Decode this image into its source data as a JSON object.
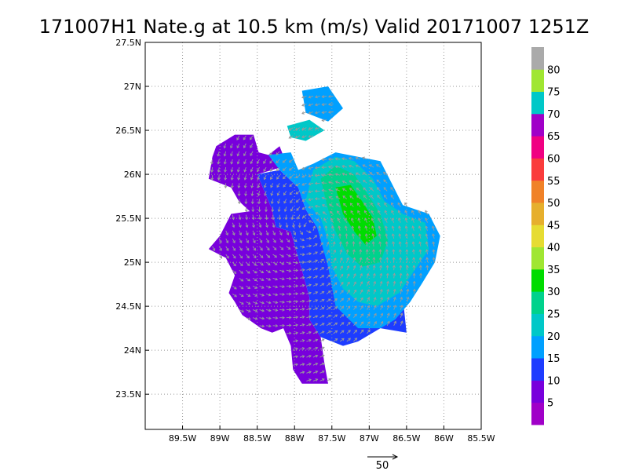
{
  "chart_data": {
    "type": "heatmap",
    "title": "171007H1 Nate.g at 10.5 km (m/s) Valid 20171007 1251Z",
    "xlim": [
      -90.0,
      -85.5
    ],
    "ylim": [
      23.1,
      27.5
    ],
    "x_ticks": [
      {
        "value": -89.5,
        "label": "89.5W"
      },
      {
        "value": -89.0,
        "label": "89W"
      },
      {
        "value": -88.5,
        "label": "88.5W"
      },
      {
        "value": -88.0,
        "label": "88W"
      },
      {
        "value": -87.5,
        "label": "87.5W"
      },
      {
        "value": -87.0,
        "label": "87W"
      },
      {
        "value": -86.5,
        "label": "86.5W"
      },
      {
        "value": -86.0,
        "label": "86W"
      },
      {
        "value": -85.5,
        "label": "85.5W"
      }
    ],
    "y_ticks": [
      {
        "value": 23.5,
        "label": "23.5N"
      },
      {
        "value": 24.0,
        "label": "24N"
      },
      {
        "value": 24.5,
        "label": "24.5N"
      },
      {
        "value": 25.0,
        "label": "25N"
      },
      {
        "value": 25.5,
        "label": "25.5N"
      },
      {
        "value": 26.0,
        "label": "26N"
      },
      {
        "value": 26.5,
        "label": "26.5N"
      },
      {
        "value": 27.0,
        "label": "27N"
      },
      {
        "value": 27.5,
        "label": "27.5N"
      }
    ],
    "grid": true,
    "colorbar": {
      "levels": [
        0,
        5,
        10,
        15,
        20,
        25,
        30,
        35,
        40,
        45,
        50,
        55,
        60,
        65,
        70,
        75,
        80,
        85
      ],
      "labels": [
        "5",
        "10",
        "15",
        "20",
        "25",
        "30",
        "35",
        "40",
        "45",
        "50",
        "55",
        "60",
        "65",
        "70",
        "75",
        "80"
      ],
      "colors": [
        "#a000c8",
        "#7800dc",
        "#1e3cff",
        "#00a0ff",
        "#00c8c8",
        "#00d28c",
        "#00dc00",
        "#a0e632",
        "#e6dc32",
        "#e6af2d",
        "#f08228",
        "#fa3c3c",
        "#f00082",
        "#a000c8",
        "#00c8c8",
        "#a0e632",
        "#aaaaaa"
      ]
    },
    "regions": [
      {
        "level": 5,
        "polygon": [
          [
            -89.05,
            26.32
          ],
          [
            -88.8,
            26.45
          ],
          [
            -88.55,
            26.45
          ],
          [
            -88.48,
            26.25
          ],
          [
            -88.35,
            26.22
          ],
          [
            -88.2,
            26.32
          ],
          [
            -88.1,
            26.1
          ],
          [
            -88.5,
            26.0
          ],
          [
            -88.4,
            25.8
          ],
          [
            -88.3,
            25.6
          ],
          [
            -88.25,
            25.4
          ],
          [
            -88.05,
            25.35
          ],
          [
            -87.95,
            25.05
          ],
          [
            -87.88,
            24.85
          ],
          [
            -87.8,
            24.6
          ],
          [
            -87.8,
            24.35
          ],
          [
            -87.65,
            24.15
          ],
          [
            -87.6,
            23.85
          ],
          [
            -87.55,
            23.62
          ],
          [
            -87.9,
            23.62
          ],
          [
            -88.02,
            23.78
          ],
          [
            -88.05,
            24.05
          ],
          [
            -88.15,
            24.25
          ],
          [
            -88.3,
            24.2
          ],
          [
            -88.45,
            24.25
          ],
          [
            -88.7,
            24.4
          ],
          [
            -88.8,
            24.55
          ],
          [
            -88.88,
            24.65
          ],
          [
            -88.8,
            24.85
          ],
          [
            -88.92,
            25.05
          ],
          [
            -89.15,
            25.15
          ],
          [
            -89.0,
            25.3
          ],
          [
            -88.85,
            25.55
          ],
          [
            -88.6,
            25.58
          ],
          [
            -88.75,
            25.7
          ],
          [
            -88.85,
            25.85
          ],
          [
            -89.15,
            25.95
          ],
          [
            -89.1,
            26.2
          ]
        ]
      },
      {
        "level": 10,
        "polygon": [
          [
            -88.5,
            26.0
          ],
          [
            -88.2,
            26.05
          ],
          [
            -87.95,
            25.85
          ],
          [
            -87.85,
            25.6
          ],
          [
            -87.7,
            25.4
          ],
          [
            -87.6,
            25.2
          ],
          [
            -87.55,
            24.95
          ],
          [
            -87.45,
            24.7
          ],
          [
            -87.25,
            24.5
          ],
          [
            -87.05,
            24.4
          ],
          [
            -86.75,
            24.45
          ],
          [
            -86.55,
            24.6
          ],
          [
            -86.5,
            24.2
          ],
          [
            -86.85,
            24.25
          ],
          [
            -87.15,
            24.1
          ],
          [
            -87.35,
            24.05
          ],
          [
            -87.65,
            24.15
          ],
          [
            -87.8,
            24.35
          ],
          [
            -87.8,
            24.6
          ],
          [
            -87.88,
            24.85
          ],
          [
            -87.95,
            25.05
          ],
          [
            -88.05,
            25.35
          ],
          [
            -88.25,
            25.4
          ],
          [
            -88.3,
            25.6
          ],
          [
            -88.4,
            25.8
          ]
        ]
      },
      {
        "level": 15,
        "polygon": [
          [
            -88.35,
            26.22
          ],
          [
            -88.05,
            26.25
          ],
          [
            -87.95,
            26.05
          ],
          [
            -87.75,
            26.12
          ],
          [
            -87.45,
            26.25
          ],
          [
            -87.15,
            26.2
          ],
          [
            -86.85,
            26.15
          ],
          [
            -86.7,
            25.9
          ],
          [
            -86.55,
            25.65
          ],
          [
            -86.2,
            25.55
          ],
          [
            -86.05,
            25.3
          ],
          [
            -86.12,
            25.0
          ],
          [
            -86.3,
            24.75
          ],
          [
            -86.45,
            24.55
          ],
          [
            -86.65,
            24.35
          ],
          [
            -86.85,
            24.25
          ],
          [
            -87.15,
            24.25
          ],
          [
            -87.45,
            24.5
          ],
          [
            -87.55,
            24.95
          ],
          [
            -87.7,
            25.4
          ],
          [
            -87.85,
            25.6
          ],
          [
            -87.95,
            25.85
          ],
          [
            -88.2,
            26.05
          ]
        ]
      },
      {
        "level": 15,
        "polygon": [
          [
            -87.9,
            26.95
          ],
          [
            -87.55,
            27.0
          ],
          [
            -87.35,
            26.75
          ],
          [
            -87.55,
            26.6
          ],
          [
            -87.85,
            26.7
          ]
        ]
      },
      {
        "level": 20,
        "polygon": [
          [
            -87.75,
            26.05
          ],
          [
            -87.45,
            26.2
          ],
          [
            -87.2,
            26.15
          ],
          [
            -86.95,
            25.95
          ],
          [
            -86.8,
            25.7
          ],
          [
            -86.55,
            25.55
          ],
          [
            -86.25,
            25.45
          ],
          [
            -86.2,
            25.15
          ],
          [
            -86.4,
            24.9
          ],
          [
            -86.6,
            24.65
          ],
          [
            -86.9,
            24.5
          ],
          [
            -87.15,
            24.55
          ],
          [
            -87.35,
            24.7
          ],
          [
            -87.5,
            24.95
          ],
          [
            -87.55,
            25.25
          ],
          [
            -87.65,
            25.5
          ],
          [
            -87.85,
            25.7
          ]
        ]
      },
      {
        "level": 20,
        "polygon": [
          [
            -88.1,
            26.55
          ],
          [
            -87.8,
            26.62
          ],
          [
            -87.6,
            26.5
          ],
          [
            -87.85,
            26.38
          ],
          [
            -88.05,
            26.42
          ]
        ]
      },
      {
        "level": 25,
        "polygon": [
          [
            -87.65,
            25.95
          ],
          [
            -87.45,
            26.1
          ],
          [
            -87.2,
            26.0
          ],
          [
            -87.0,
            25.75
          ],
          [
            -86.85,
            25.55
          ],
          [
            -86.75,
            25.25
          ],
          [
            -86.85,
            25.0
          ],
          [
            -87.1,
            24.95
          ],
          [
            -87.3,
            25.1
          ],
          [
            -87.45,
            25.35
          ],
          [
            -87.55,
            25.6
          ]
        ]
      },
      {
        "level": 30,
        "polygon": [
          [
            -87.45,
            25.85
          ],
          [
            -87.25,
            25.88
          ],
          [
            -87.1,
            25.7
          ],
          [
            -86.95,
            25.5
          ],
          [
            -86.9,
            25.3
          ],
          [
            -87.05,
            25.2
          ],
          [
            -87.2,
            25.35
          ],
          [
            -87.35,
            25.55
          ]
        ]
      }
    ],
    "vector_reference": {
      "value": 50,
      "label": "50"
    }
  }
}
